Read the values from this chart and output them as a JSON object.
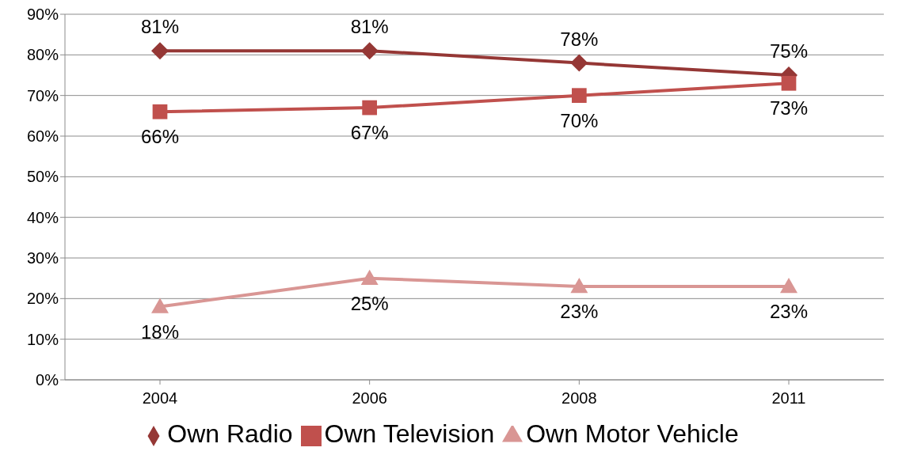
{
  "chart_data": {
    "type": "line",
    "categories": [
      "2004",
      "2006",
      "2008",
      "2011"
    ],
    "series": [
      {
        "name": "Own Radio",
        "color": "#953735",
        "marker": "diamond",
        "values": [
          81,
          81,
          78,
          75
        ],
        "value_labels": [
          "81%",
          "81%",
          "78%",
          "75%"
        ]
      },
      {
        "name": "Own Television",
        "color": "#c0504d",
        "marker": "square",
        "values": [
          66,
          67,
          70,
          73
        ],
        "value_labels": [
          "66%",
          "67%",
          "70%",
          "73%"
        ]
      },
      {
        "name": "Own Motor Vehicle",
        "color": "#d99694",
        "marker": "triangle",
        "values": [
          18,
          25,
          23,
          23
        ],
        "value_labels": [
          "18%",
          "25%",
          "23%",
          "23%"
        ]
      }
    ],
    "ylim": [
      0,
      90
    ],
    "yticks": [
      {
        "value": 0,
        "label": "0%"
      },
      {
        "value": 10,
        "label": "10%"
      },
      {
        "value": 20,
        "label": "20%"
      },
      {
        "value": 30,
        "label": "30%"
      },
      {
        "value": 40,
        "label": "40%"
      },
      {
        "value": 50,
        "label": "50%"
      },
      {
        "value": 60,
        "label": "60%"
      },
      {
        "value": 70,
        "label": "70%"
      },
      {
        "value": 80,
        "label": "80%"
      },
      {
        "value": 90,
        "label": "90%"
      }
    ],
    "grid": "y",
    "legend": "bottom",
    "line_style": "solid"
  }
}
